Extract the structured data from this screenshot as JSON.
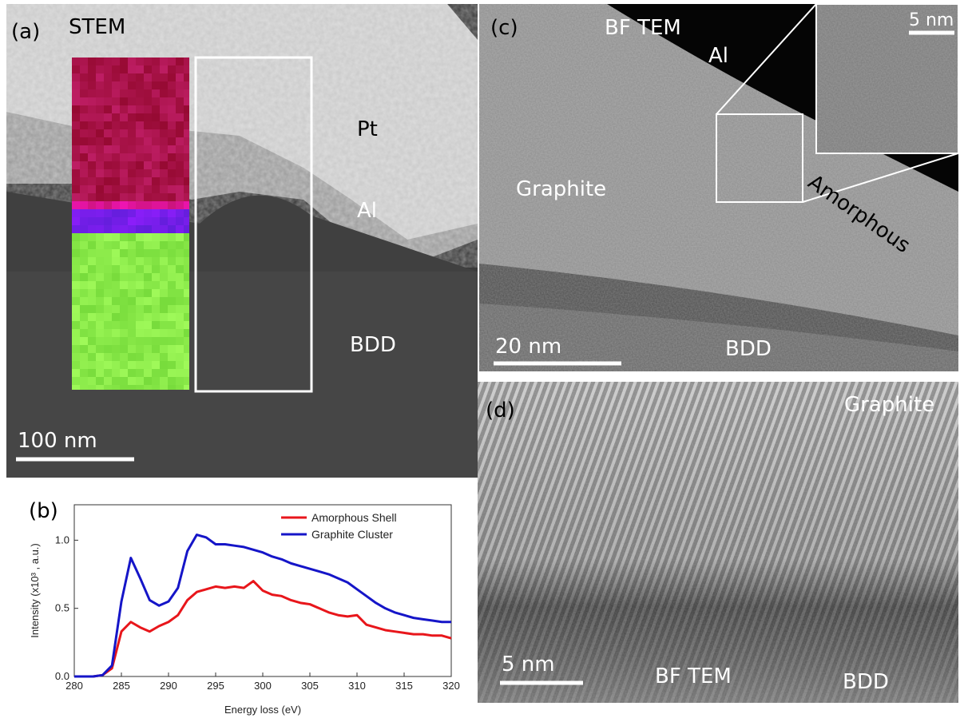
{
  "panels": {
    "a": {
      "label": "(a)",
      "technique": "STEM",
      "layers": [
        "Pt",
        "Al",
        "BDD"
      ],
      "scale_bar": "100 nm"
    },
    "c": {
      "label": "(c)",
      "technique": "BF TEM",
      "top_layer": "Al",
      "inset_scale_bar": "5 nm",
      "graphite": "Graphite",
      "amorphous": "Amorphous",
      "scale_bar": "20 nm",
      "substrate": "BDD"
    },
    "d": {
      "label": "(d)",
      "graphite": "Graphite",
      "scale_bar": "5 nm",
      "technique": "BF TEM",
      "substrate": "BDD"
    },
    "b": {
      "label": "(b)"
    }
  },
  "chart_data": {
    "type": "line",
    "x_label": "Energy loss (eV)",
    "y_label": "Intensity (x10³ , a.u.)",
    "x": [
      280,
      281,
      282,
      283,
      284,
      285,
      286,
      287,
      288,
      289,
      290,
      291,
      292,
      293,
      294,
      295,
      296,
      297,
      298,
      299,
      300,
      301,
      302,
      303,
      304,
      305,
      306,
      307,
      308,
      309,
      310,
      311,
      312,
      313,
      314,
      315,
      316,
      317,
      318,
      319,
      320
    ],
    "series": [
      {
        "name": "Amorphous Shell",
        "color": "#e8161b",
        "values": [
          0,
          0,
          0,
          0.01,
          0.06,
          0.33,
          0.4,
          0.36,
          0.33,
          0.37,
          0.4,
          0.45,
          0.56,
          0.62,
          0.64,
          0.66,
          0.65,
          0.66,
          0.65,
          0.7,
          0.63,
          0.6,
          0.59,
          0.56,
          0.54,
          0.53,
          0.5,
          0.47,
          0.45,
          0.44,
          0.45,
          0.38,
          0.36,
          0.34,
          0.33,
          0.32,
          0.31,
          0.31,
          0.3,
          0.3,
          0.28
        ]
      },
      {
        "name": "Graphite Cluster",
        "color": "#1515c8",
        "values": [
          0,
          0,
          0,
          0.01,
          0.08,
          0.55,
          0.87,
          0.72,
          0.56,
          0.52,
          0.55,
          0.65,
          0.92,
          1.04,
          1.02,
          0.97,
          0.97,
          0.96,
          0.95,
          0.93,
          0.91,
          0.88,
          0.86,
          0.83,
          0.81,
          0.79,
          0.77,
          0.75,
          0.72,
          0.69,
          0.64,
          0.59,
          0.54,
          0.5,
          0.47,
          0.45,
          0.43,
          0.42,
          0.41,
          0.4,
          0.4
        ]
      }
    ],
    "xlim": [
      280,
      320
    ],
    "xticks": [
      280,
      285,
      290,
      295,
      300,
      305,
      310,
      315,
      320
    ],
    "ylim": [
      0,
      1.26
    ],
    "yticks": [
      {
        "value": 0,
        "label": "0.0"
      },
      {
        "value": 0.5,
        "label": "0.5"
      },
      {
        "value": 1,
        "label": "1.0"
      }
    ],
    "legend": "upper right"
  }
}
